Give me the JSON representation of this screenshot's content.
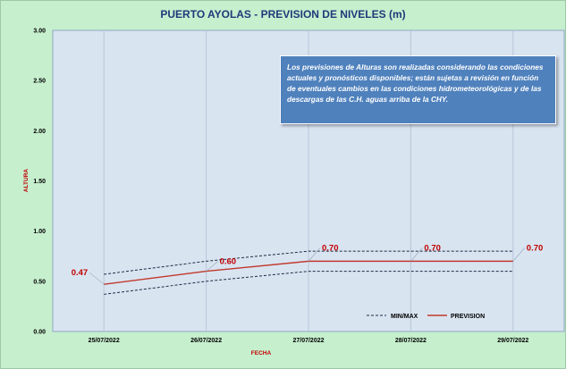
{
  "chart_data": {
    "type": "line",
    "title": "PUERTO AYOLAS - PREVISION DE NIVELES (m)",
    "xlabel": "FECHA",
    "ylabel": "ALTURA",
    "categories": [
      "25/07/2022",
      "26/07/2022",
      "27/07/2022",
      "28/07/2022",
      "29/07/2022"
    ],
    "ylim": [
      0,
      3
    ],
    "yticks": [
      "0.00",
      "0.50",
      "1.00",
      "1.50",
      "2.00",
      "2.50",
      "3.00"
    ],
    "series": [
      {
        "name": "PREVISION",
        "values": [
          0.47,
          0.6,
          0.7,
          0.7,
          0.7
        ],
        "labels": [
          "0.47",
          "0.60",
          "0.70",
          "0.70",
          "0.70"
        ],
        "color": "#c0392b",
        "style": "solid"
      },
      {
        "name": "MIN/MAX",
        "role": "max",
        "values": [
          0.57,
          0.7,
          0.8,
          0.8,
          0.8
        ],
        "color": "#1f2a44",
        "style": "dashed"
      },
      {
        "name": "MIN/MAX",
        "role": "min",
        "values": [
          0.37,
          0.5,
          0.6,
          0.6,
          0.6
        ],
        "color": "#1f2a44",
        "style": "dashed"
      }
    ],
    "grid": "vertical",
    "legend_position": "bottom-right",
    "colors": {
      "plot_bg": "#d9e4f1",
      "page_bg": "#c6efce",
      "note_bg": "#4f81bd"
    },
    "annotation": "Los previsiones de Alturas son realizadas considerando las condiciones actuales y pronósticos disponibles; están sujetas a revisión en función de eventuales cambios en las condiciones hidrometeorológicas y de las descargas de las C.H. aguas arriba de la CHY."
  }
}
